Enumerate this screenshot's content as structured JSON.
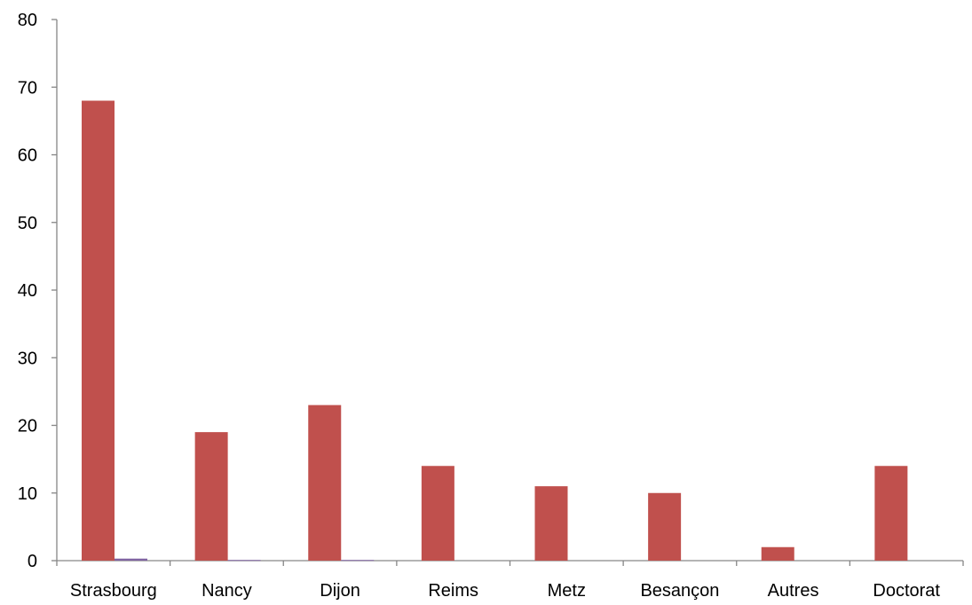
{
  "chart_data": {
    "type": "bar",
    "categories": [
      "Strasbourg",
      "Nancy",
      "Dijon",
      "Reims",
      "Metz",
      "Besançon",
      "Autres",
      "Doctorat"
    ],
    "series": [
      {
        "values": [
          68,
          19,
          23,
          14,
          11,
          10,
          2,
          14
        ],
        "color": "#C0504D"
      },
      {
        "values": [
          0.3,
          0.1,
          0.1,
          0,
          0,
          0,
          0,
          0
        ],
        "color": "#8064A2"
      }
    ],
    "title": "",
    "xlabel": "",
    "ylabel": "",
    "ylim": [
      0,
      80
    ],
    "yticks": [
      0,
      10,
      20,
      30,
      40,
      50,
      60,
      70,
      80
    ],
    "grid": false,
    "legend": "none"
  }
}
